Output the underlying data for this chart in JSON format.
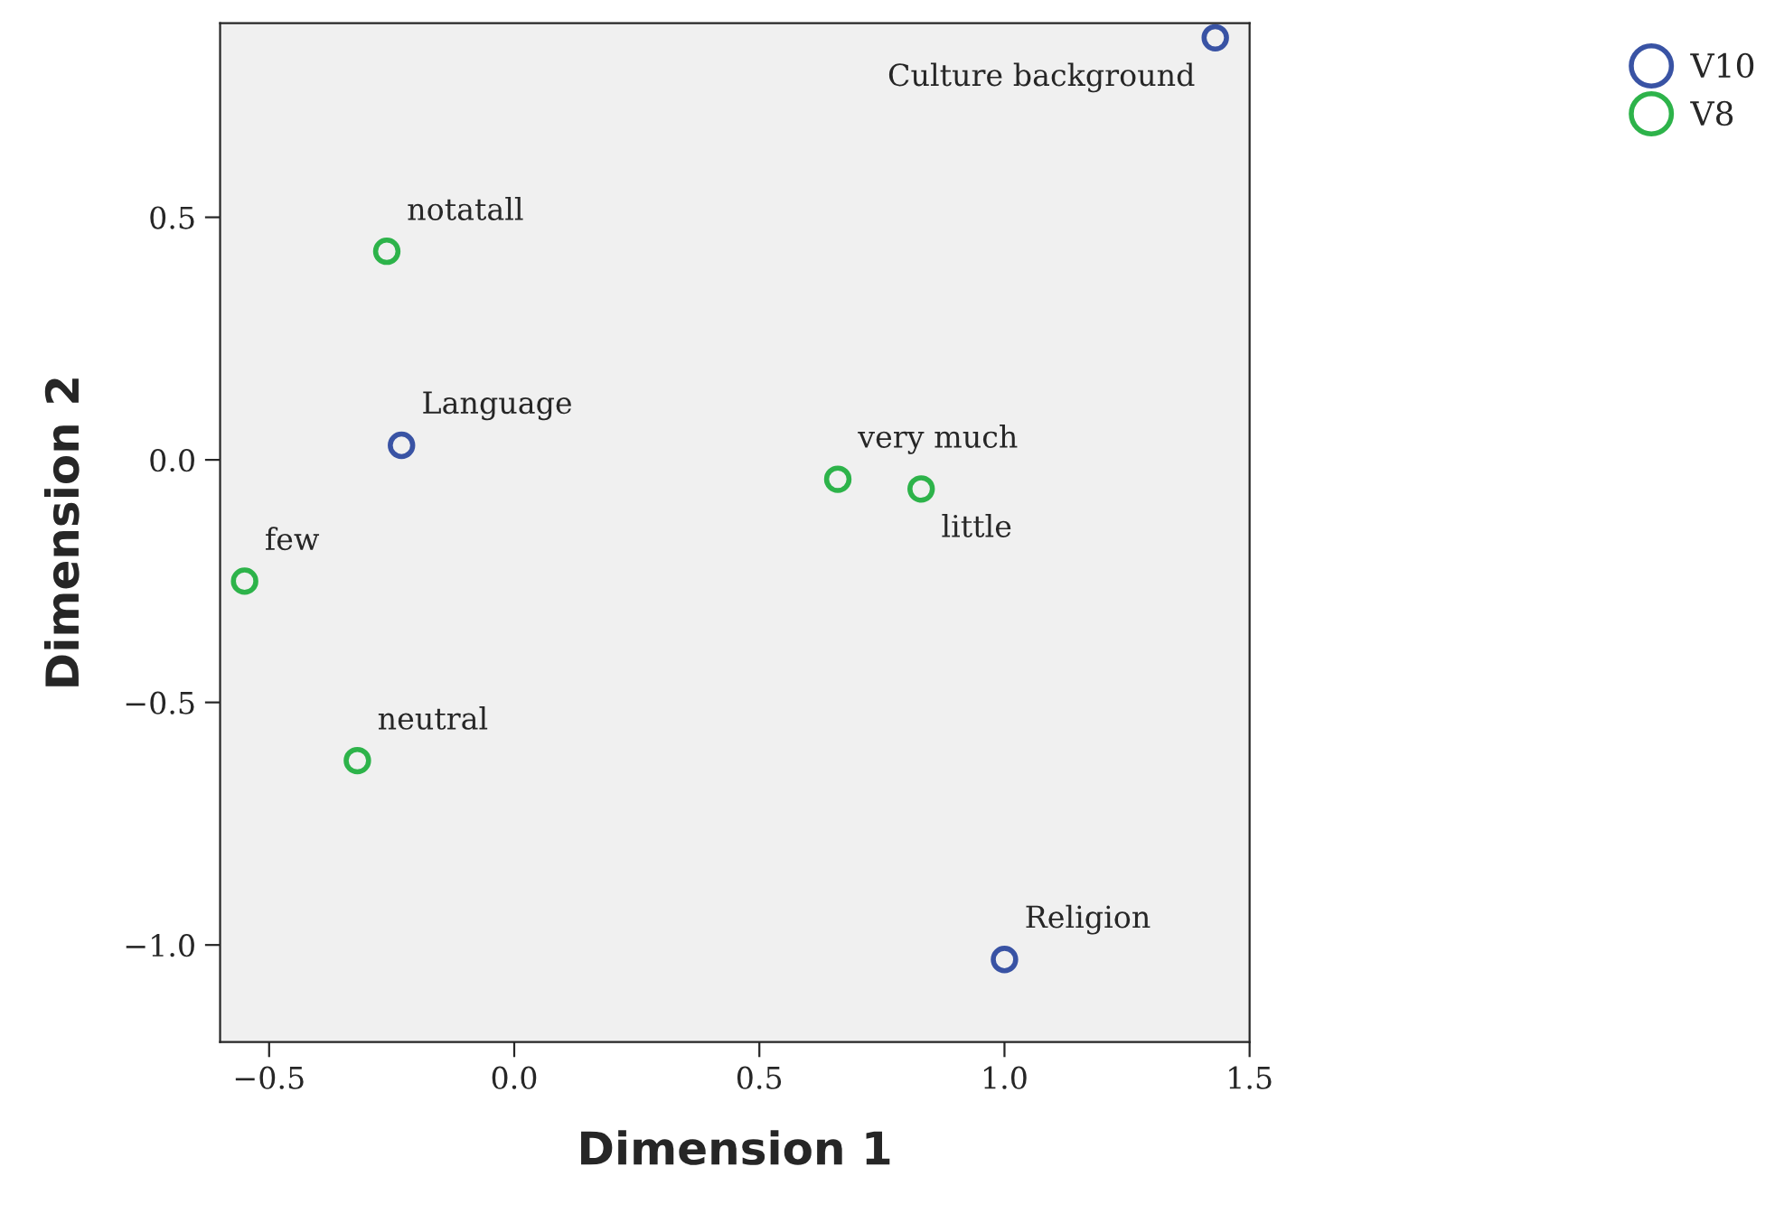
{
  "chart_data": {
    "type": "scatter",
    "xlabel": "Dimension 1",
    "ylabel": "Dimension 2",
    "series": [
      {
        "name": "V10",
        "color": "#3953a4",
        "x": [
          1.43,
          -0.23,
          1.0
        ],
        "values": [
          0.87,
          0.03,
          -1.03
        ]
      },
      {
        "name": "V8",
        "color": "#2db34a",
        "x": [
          -0.26,
          0.66,
          0.83,
          -0.55,
          -0.32
        ],
        "values": [
          0.43,
          -0.04,
          -0.06,
          -0.25,
          -0.62
        ]
      }
    ],
    "annotations": [
      {
        "text": "Culture background",
        "x": 1.43,
        "y": 0.87
      },
      {
        "text": "Language",
        "x": -0.23,
        "y": 0.03
      },
      {
        "text": "Religion",
        "x": 1.0,
        "y": -1.03
      },
      {
        "text": "notatall",
        "x": -0.26,
        "y": 0.43
      },
      {
        "text": "very much",
        "x": 0.66,
        "y": -0.04
      },
      {
        "text": "little",
        "x": 0.83,
        "y": -0.06
      },
      {
        "text": "few",
        "x": -0.55,
        "y": -0.25
      },
      {
        "text": "neutral",
        "x": -0.32,
        "y": -0.62
      }
    ],
    "xlim": [
      -0.6,
      1.5
    ],
    "ylim": [
      -1.2,
      0.9
    ],
    "xticks": [
      {
        "value": -0.5,
        "label": "−0.5"
      },
      {
        "value": 0.0,
        "label": "0.0"
      },
      {
        "value": 0.5,
        "label": "0.5"
      },
      {
        "value": 1.0,
        "label": "1.0"
      },
      {
        "value": 1.5,
        "label": "1.5"
      }
    ],
    "yticks": [
      {
        "value": -1.0,
        "label": "−1.0"
      },
      {
        "value": -0.5,
        "label": "−0.5"
      },
      {
        "value": 0.0,
        "label": "0.0"
      },
      {
        "value": 0.5,
        "label": "0.5"
      }
    ],
    "marker": "circle",
    "grid": false,
    "legend": "top right"
  }
}
